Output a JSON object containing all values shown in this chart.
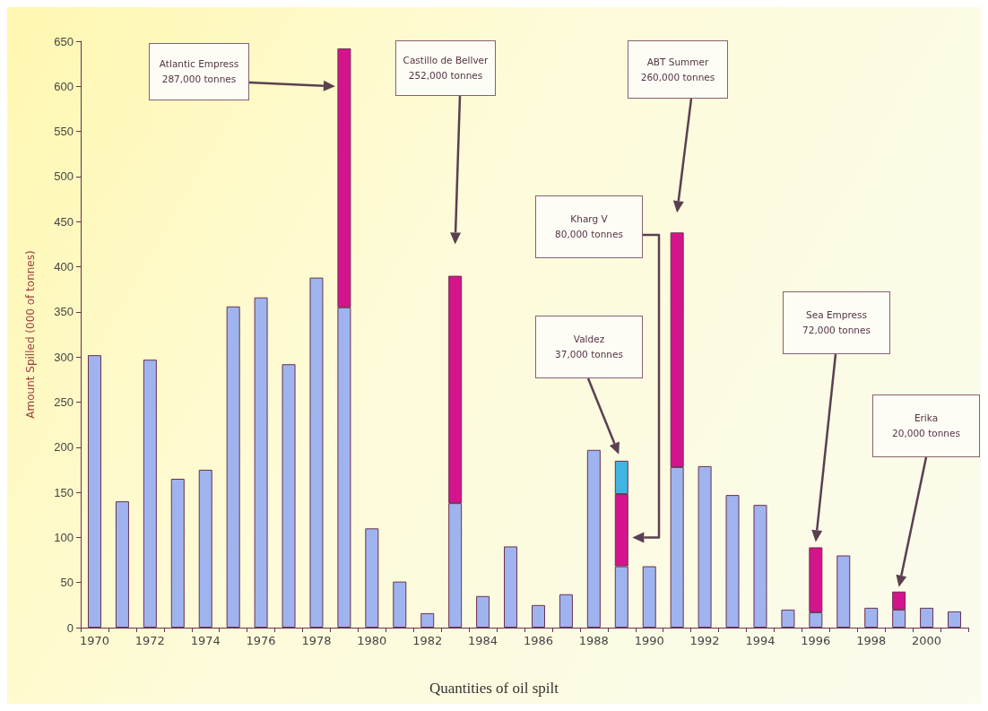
{
  "chart_data": {
    "type": "bar",
    "title": "Quantities of oil spilt",
    "ylabel": "Amount Spilled (000 of tonnes)",
    "categories": [
      "1970",
      null,
      "1972",
      null,
      "1974",
      null,
      "1976",
      null,
      "1978",
      null,
      "1980",
      null,
      "1982",
      null,
      "1984",
      null,
      "1986",
      null,
      "1988",
      null,
      "1990",
      null,
      "1992",
      null,
      "1994",
      null,
      "1996",
      null,
      "1998",
      null,
      "2000",
      null
    ],
    "stacked": true,
    "series": [
      {
        "color": "#9fb4ee",
        "values": [
          302,
          140,
          297,
          165,
          175,
          356,
          366,
          292,
          388,
          355,
          110,
          51,
          16,
          138,
          35,
          90,
          25,
          37,
          197,
          68,
          68,
          178,
          179,
          147,
          136,
          20,
          17,
          80,
          22,
          20,
          22,
          18
        ]
      },
      {
        "color": "#d4148c",
        "values": [
          null,
          null,
          null,
          null,
          null,
          null,
          null,
          null,
          null,
          287,
          null,
          null,
          null,
          252,
          null,
          null,
          null,
          null,
          null,
          80,
          null,
          260,
          null,
          null,
          null,
          null,
          72,
          null,
          null,
          20,
          null,
          null
        ]
      },
      {
        "color": "#3fb6e2",
        "values": [
          null,
          null,
          null,
          null,
          null,
          null,
          null,
          null,
          null,
          null,
          null,
          null,
          null,
          null,
          null,
          null,
          null,
          null,
          null,
          37,
          null,
          null,
          null,
          null,
          null,
          null,
          null,
          null,
          null,
          null,
          null,
          null
        ]
      }
    ],
    "ylim": [
      0,
      650
    ],
    "yticks": [
      0,
      50,
      100,
      150,
      200,
      250,
      300,
      350,
      400,
      450,
      500,
      550,
      600,
      650
    ],
    "grid": false,
    "annotations": [
      "Atlantic Empress\n287,000 tonnes",
      "Castillo de Bellver\n252,000 tonnes",
      "ABT Summer\n260,000 tonnes",
      "Kharg V\n80,000 tonnes",
      "Valdez\n37,000 tonnes",
      "Sea Empress\n72,000 tonnes",
      "Erika\n20,000 tonnes"
    ]
  }
}
